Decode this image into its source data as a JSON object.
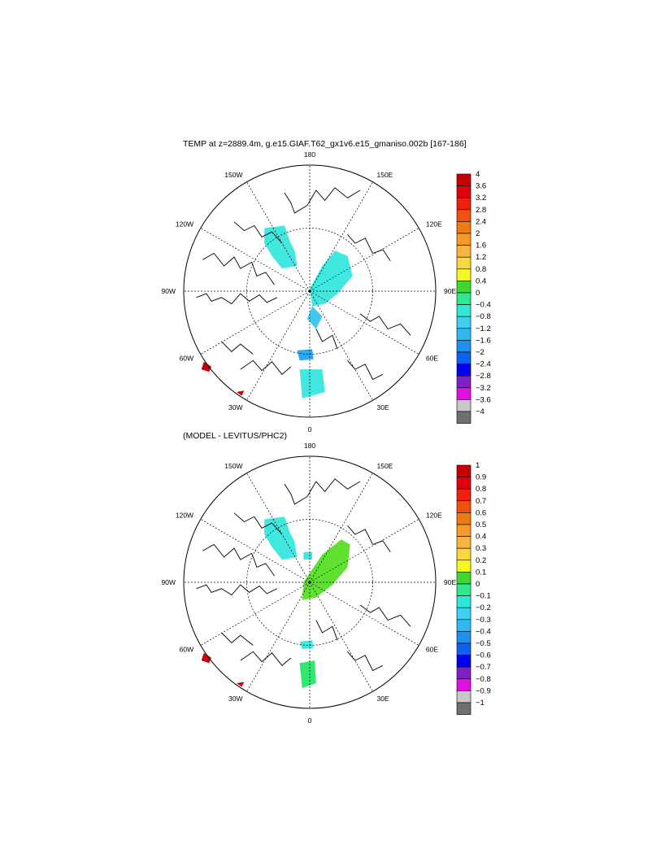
{
  "titles": {
    "top": "TEMP at z=2889.4m, g.e15.GIAF.T62_gx1v6.e15_gmaniso.002b [167-186]",
    "bottom": "(MODEL - LEVITUS/PHC2)"
  },
  "maps": [
    {
      "id": "top",
      "longitude_labels": {
        "n": "180",
        "s": "0",
        "e": "90E",
        "w": "90W",
        "nw1": "150W",
        "nw2": "120W",
        "sw1": "60W",
        "sw2": "30W",
        "ne1": "150E",
        "ne2": "120E",
        "se1": "60E",
        "se2": "30E"
      },
      "colorbar": {
        "labels": [
          "4",
          "3.6",
          "3.2",
          "2.8",
          "2.4",
          "2",
          "1.6",
          "1.2",
          "0.8",
          "0.4",
          "0",
          "−0.4",
          "−0.8",
          "−1.2",
          "−1.6",
          "−2",
          "−2.4",
          "−2.8",
          "−3.2",
          "−3.6",
          "−4"
        ],
        "colors": [
          "#c80000",
          "#e00010",
          "#f02010",
          "#f05010",
          "#f07a14",
          "#f89a28",
          "#f8b440",
          "#f8d840",
          "#f8f820",
          "#40d830",
          "#30e890",
          "#30e8d8",
          "#40d0f0",
          "#30b8f0",
          "#2090f0",
          "#1060f0",
          "#0000f0",
          "#8020c8",
          "#e010e0",
          "#c8c8c8",
          "#707070"
        ]
      }
    },
    {
      "id": "bottom",
      "longitude_labels": {
        "n": "180",
        "s": "0",
        "e": "90E",
        "w": "90W",
        "nw1": "150W",
        "nw2": "120W",
        "sw1": "60W",
        "sw2": "30W",
        "ne1": "150E",
        "ne2": "120E",
        "se1": "60E",
        "se2": "30E"
      },
      "colorbar": {
        "labels": [
          "1",
          "0.9",
          "0.8",
          "0.7",
          "0.6",
          "0.5",
          "0.4",
          "0.3",
          "0.2",
          "0.1",
          "0",
          "−0.1",
          "−0.2",
          "−0.3",
          "−0.4",
          "−0.5",
          "−0.6",
          "−0.7",
          "−0.8",
          "−0.9",
          "−1"
        ],
        "colors": [
          "#c80000",
          "#e00010",
          "#f02010",
          "#f05010",
          "#f07a14",
          "#f89a28",
          "#f8b440",
          "#f8d840",
          "#f8f820",
          "#40d830",
          "#30e890",
          "#30e8d8",
          "#40d0f0",
          "#30b8f0",
          "#2090f0",
          "#1060f0",
          "#0000f0",
          "#8020c8",
          "#e010e0",
          "#c8c8c8",
          "#707070"
        ]
      }
    }
  ],
  "fill_colors": {
    "cyan": "#40e8e0",
    "lightblue": "#40c8f0",
    "blue": "#30a8f0",
    "green": "#60e030",
    "seagreen": "#30e870",
    "red": "#c80000"
  }
}
